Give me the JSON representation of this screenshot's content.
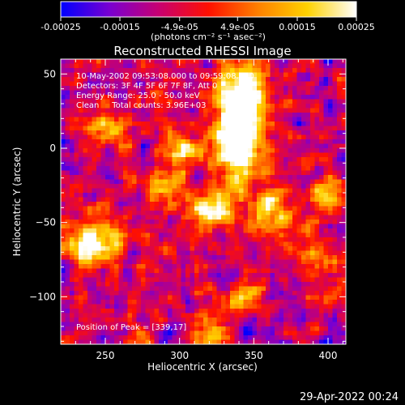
{
  "chart_data": {
    "type": "heatmap",
    "title": "Reconstructed RHESSI Image",
    "xlabel": "Heliocentric X (arcsec)",
    "ylabel": "Heliocentric Y (arcsec)",
    "xlim": [
      220,
      412
    ],
    "ylim": [
      -132,
      60
    ],
    "x_ticks": [
      250,
      300,
      350,
      400
    ],
    "y_ticks": [
      50,
      0,
      -50,
      -100
    ],
    "colorbar": {
      "range": [
        -0.00025,
        0.00025
      ],
      "tick_values": [
        -0.00025,
        -0.00015,
        -4.9e-05,
        4.9e-05,
        0.00015,
        0.00025
      ],
      "tick_labels": [
        "-0.00025",
        "-0.00015",
        "-4.9e-05",
        "4.9e-05",
        "0.00015",
        "0.00025"
      ],
      "label": "(photons cm⁻² s⁻¹ asec⁻²)",
      "colors": [
        "#0000ff",
        "#7a00d0",
        "#c80070",
        "#ff1000",
        "#ff8000",
        "#ffd200",
        "#ffffff"
      ]
    },
    "annotations": [
      "10-May-2002 09:53:08.000 to 09:59:08.000",
      "Detectors: 3F 4F 5F 6F 7F 8F, Att 0",
      "Energy Range: 25.0 - 50.0 keV",
      "Clean     Total counts: 3.96E+03"
    ],
    "peak_label": "Position of Peak = [339,17]",
    "peak": [
      339,
      17
    ],
    "sources": [
      {
        "x": 340,
        "y": 10,
        "sx": 12,
        "sy": 24,
        "amp": 1.0
      },
      {
        "x": 345,
        "y": 40,
        "sx": 9,
        "sy": 12,
        "amp": 0.55
      },
      {
        "x": 320,
        "y": -40,
        "sx": 10,
        "sy": 8,
        "amp": 0.7
      },
      {
        "x": 240,
        "y": -65,
        "sx": 12,
        "sy": 10,
        "amp": 0.7
      },
      {
        "x": 300,
        "y": 0,
        "sx": 8,
        "sy": 8,
        "amp": 0.6
      },
      {
        "x": 345,
        "y": -100,
        "sx": 9,
        "sy": 6,
        "amp": 0.55
      },
      {
        "x": 360,
        "y": -45,
        "sx": 10,
        "sy": 12,
        "amp": 0.5
      },
      {
        "x": 290,
        "y": -30,
        "sx": 9,
        "sy": 10,
        "amp": 0.5
      },
      {
        "x": 255,
        "y": 15,
        "sx": 10,
        "sy": 8,
        "amp": 0.5
      },
      {
        "x": 390,
        "y": -75,
        "sx": 9,
        "sy": 9,
        "amp": 0.45
      },
      {
        "x": 320,
        "y": -120,
        "sx": 9,
        "sy": 7,
        "amp": 0.45
      },
      {
        "x": 400,
        "y": -30,
        "sx": 8,
        "sy": 9,
        "amp": 0.45
      }
    ]
  },
  "footer": {
    "timestamp": "29-Apr-2022 00:24"
  }
}
